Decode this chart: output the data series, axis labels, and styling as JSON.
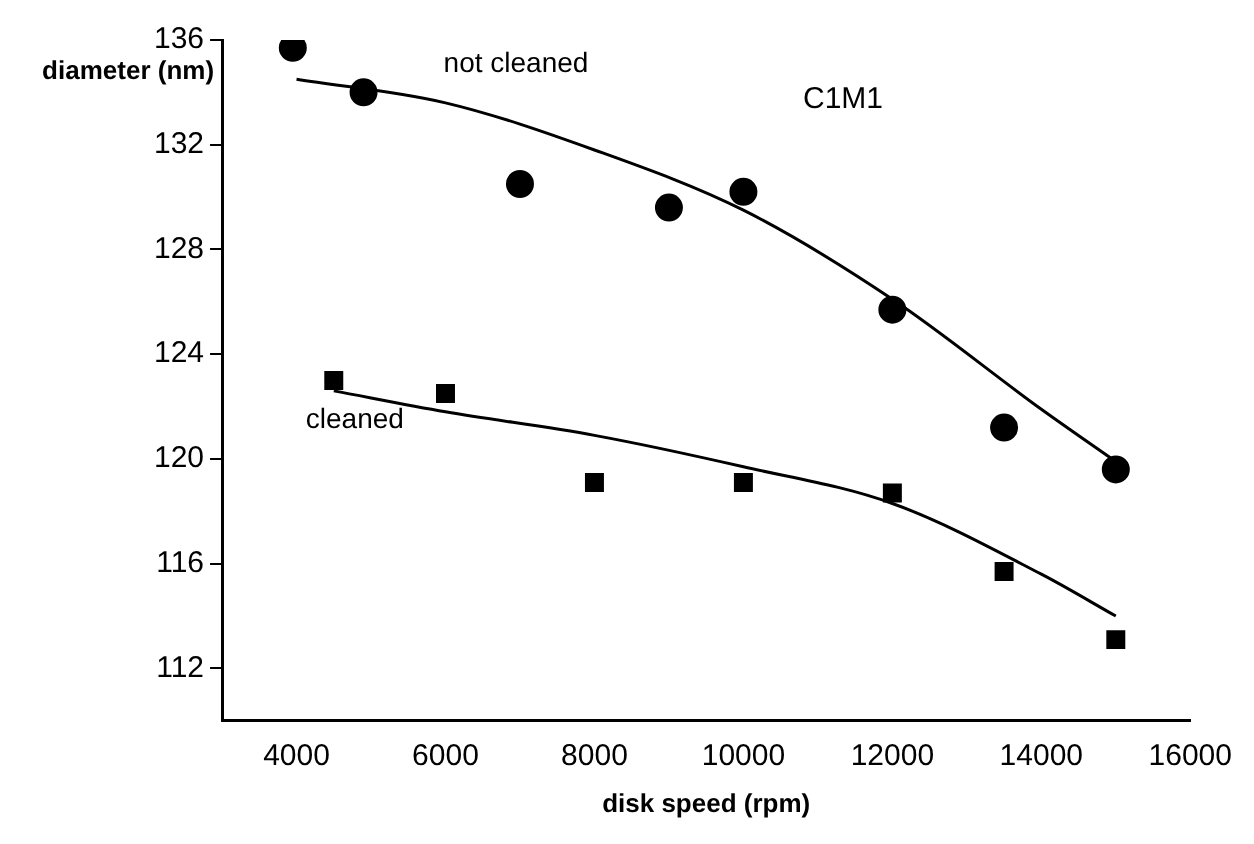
{
  "chart_data": {
    "type": "scatter",
    "xlabel": "disk speed (rpm)",
    "ylabel": "diameter (nm)",
    "annotations": [
      "C1M1"
    ],
    "xlim": [
      3000,
      16000
    ],
    "xticks": [
      4000,
      6000,
      8000,
      10000,
      12000,
      14000,
      16000
    ],
    "ylim": [
      110,
      136
    ],
    "yticks": [
      112,
      116,
      120,
      124,
      128,
      132,
      136
    ],
    "grid": false,
    "legend": false,
    "series": [
      {
        "name": "not cleaned",
        "type": "scatter",
        "marker": "circle",
        "color": "#000000",
        "x": [
          3950,
          4900,
          7000,
          9000,
          10000,
          12000,
          13500,
          15000
        ],
        "values": [
          135.7,
          134.0,
          130.5,
          129.6,
          130.2,
          125.7,
          121.2,
          119.6
        ]
      },
      {
        "name": "cleaned",
        "type": "scatter",
        "marker": "square",
        "color": "#000000",
        "x": [
          4500,
          6000,
          8000,
          10000,
          12000,
          13500,
          15000
        ],
        "values": [
          123.0,
          122.5,
          119.1,
          119.1,
          118.7,
          115.7,
          113.1
        ]
      },
      {
        "type": "line",
        "marker": "none",
        "line_style": "solid",
        "color": "#000000",
        "x": [
          4000,
          6000,
          8000,
          10000,
          12000,
          14000,
          15000
        ],
        "values": [
          134.5,
          133.6,
          131.8,
          129.5,
          126.1,
          121.9,
          119.9
        ]
      },
      {
        "type": "line",
        "marker": "none",
        "line_style": "solid",
        "color": "#000000",
        "x": [
          4500,
          6000,
          8000,
          10000,
          12000,
          14000,
          15000
        ],
        "values": [
          122.6,
          121.8,
          120.9,
          119.7,
          118.3,
          115.6,
          114.0
        ]
      }
    ]
  }
}
